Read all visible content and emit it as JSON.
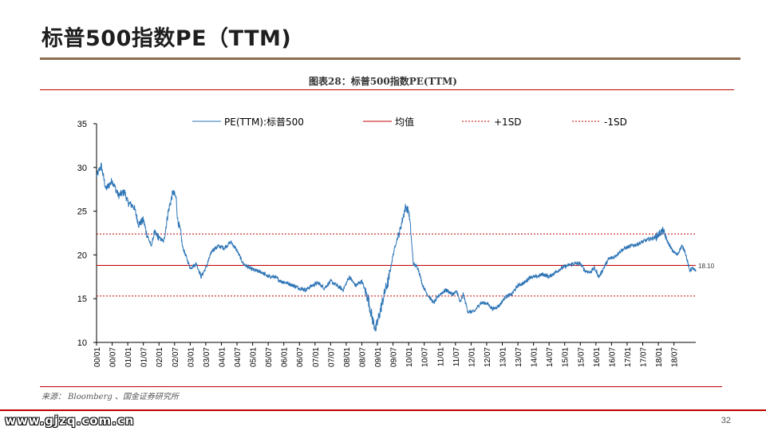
{
  "page": {
    "title": "标普500指数PE（TTM)",
    "figure_caption": "图表28：标普500指数PE(TTM)",
    "source": "来源： Bloomberg 、国金证券研究所",
    "watermark": "www.gjzq.com.cn",
    "page_number": "32"
  },
  "colors": {
    "series": "#2e75b6",
    "mean": "#c00000",
    "sd": "#c00000",
    "accent_rule": "#8b6f4e",
    "axis": "#000000"
  },
  "chart_data": {
    "type": "line",
    "title": "图表28：标普500指数PE(TTM)",
    "xlabel": "",
    "ylabel": "",
    "ylim": [
      10,
      35
    ],
    "yticks": [
      "10",
      "15",
      "20",
      "25",
      "30",
      "35"
    ],
    "xlim": [
      2000.0,
      2019.2
    ],
    "xtick_labels": [
      "00/01",
      "00/07",
      "01/01",
      "01/07",
      "02/01",
      "02/07",
      "03/01",
      "03/07",
      "04/01",
      "04/07",
      "05/01",
      "05/07",
      "06/01",
      "06/07",
      "07/01",
      "07/07",
      "08/01",
      "08/07",
      "09/01",
      "09/07",
      "10/01",
      "10/07",
      "11/01",
      "11/07",
      "12/01",
      "12/07",
      "13/01",
      "13/07",
      "14/01",
      "14/07",
      "15/01",
      "15/07",
      "16/01",
      "16/07",
      "17/01",
      "17/07",
      "18/01",
      "18/07"
    ],
    "legend": [
      "PE(TTM):标普500",
      "均值",
      "+1SD",
      "-1SD"
    ],
    "series": [
      {
        "name": "PE(TTM):标普500",
        "x": [
          2000.0,
          2000.15,
          2000.3,
          2000.5,
          2000.7,
          2000.9,
          2001.0,
          2001.2,
          2001.35,
          2001.5,
          2001.6,
          2001.75,
          2001.85,
          2002.0,
          2002.15,
          2002.3,
          2002.45,
          2002.55,
          2002.6,
          2002.7,
          2002.75,
          2002.9,
          2003.0,
          2003.2,
          2003.35,
          2003.5,
          2003.7,
          2003.9,
          2004.1,
          2004.3,
          2004.5,
          2004.7,
          2004.9,
          2005.1,
          2005.3,
          2005.5,
          2005.7,
          2005.9,
          2006.1,
          2006.3,
          2006.5,
          2006.7,
          2006.9,
          2007.1,
          2007.3,
          2007.5,
          2007.7,
          2007.9,
          2008.1,
          2008.3,
          2008.5,
          2008.7,
          2008.85,
          2008.95,
          2009.05,
          2009.15,
          2009.25,
          2009.35,
          2009.5,
          2009.6,
          2009.7,
          2009.8,
          2009.9,
          2010.0,
          2010.05,
          2010.15,
          2010.3,
          2010.45,
          2010.6,
          2010.8,
          2011.0,
          2011.2,
          2011.4,
          2011.55,
          2011.65,
          2011.75,
          2011.9,
          2012.1,
          2012.3,
          2012.5,
          2012.7,
          2012.9,
          2013.1,
          2013.3,
          2013.5,
          2013.7,
          2013.9,
          2014.1,
          2014.3,
          2014.5,
          2014.7,
          2014.9,
          2015.1,
          2015.3,
          2015.5,
          2015.65,
          2015.8,
          2015.95,
          2016.1,
          2016.25,
          2016.4,
          2016.6,
          2016.8,
          2016.95,
          2017.1,
          2017.3,
          2017.5,
          2017.7,
          2017.9,
          2018.05,
          2018.15,
          2018.3,
          2018.45,
          2018.6,
          2018.75,
          2018.85,
          2018.95,
          2019.0,
          2019.1,
          2019.2
        ],
        "values": [
          29.0,
          30.2,
          27.5,
          28.5,
          26.8,
          27.2,
          26.0,
          25.5,
          23.5,
          24.0,
          22.5,
          21.0,
          22.5,
          22.0,
          21.5,
          25.0,
          27.2,
          26.5,
          24.0,
          22.5,
          21.0,
          19.5,
          18.5,
          19.0,
          17.5,
          18.5,
          20.5,
          21.0,
          20.8,
          21.5,
          20.5,
          19.0,
          18.5,
          18.2,
          18.0,
          17.5,
          17.5,
          17.0,
          16.8,
          16.5,
          16.2,
          16.0,
          16.5,
          16.8,
          16.2,
          17.0,
          16.5,
          16.0,
          17.5,
          16.5,
          17.0,
          15.0,
          12.5,
          11.5,
          13.0,
          14.5,
          16.0,
          17.0,
          20.0,
          21.5,
          22.5,
          24.0,
          25.5,
          25.0,
          23.5,
          19.0,
          18.5,
          16.5,
          15.5,
          14.5,
          15.5,
          16.0,
          15.5,
          15.8,
          14.5,
          15.5,
          13.5,
          13.5,
          14.5,
          14.5,
          13.8,
          14.2,
          15.2,
          15.5,
          16.5,
          16.8,
          17.5,
          17.5,
          17.8,
          17.5,
          18.0,
          18.5,
          18.8,
          19.0,
          19.0,
          18.2,
          18.0,
          18.5,
          17.5,
          18.5,
          19.5,
          19.8,
          20.5,
          20.8,
          21.0,
          21.2,
          21.5,
          21.8,
          22.0,
          22.5,
          22.8,
          21.5,
          20.5,
          20.0,
          21.0,
          20.5,
          19.0,
          18.2,
          18.5,
          18.1
        ]
      }
    ],
    "reference_lines": [
      {
        "name": "均值",
        "value": 18.8,
        "style": "solid"
      },
      {
        "name": "+1SD",
        "value": 22.4,
        "style": "dashed"
      },
      {
        "name": "-1SD",
        "value": 15.3,
        "style": "dashed"
      }
    ],
    "annotations": [
      {
        "text": "18.10",
        "x": 2019.2,
        "y": 18.1
      }
    ]
  }
}
